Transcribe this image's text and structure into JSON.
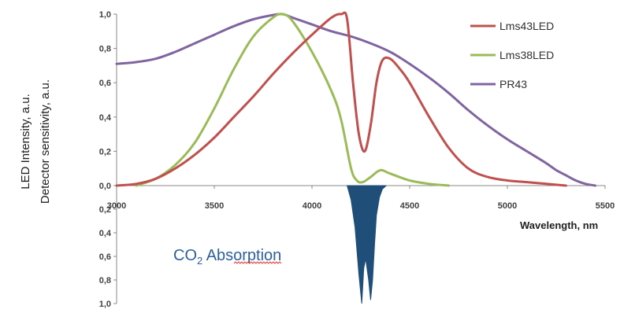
{
  "chart_data": {
    "type": "line",
    "xlabel": "Wavelength, nm",
    "ylabel_lines": [
      "LED Intensity, a.u.",
      "Detector sensitivity, a.u."
    ],
    "xlim": [
      3000,
      5500
    ],
    "x_ticks": [
      "3000",
      "3500",
      "4000",
      "4500",
      "5000",
      "5500"
    ],
    "ylim_top": [
      0,
      1
    ],
    "ylim_bottom": [
      0,
      1
    ],
    "y_ticks_top": [
      "0,0",
      "0,2",
      "0,4",
      "0,6",
      "0,8",
      "1,0"
    ],
    "y_ticks_bottom": [
      "0,2",
      "0,4",
      "0,6",
      "0,8",
      "1,0"
    ],
    "legend_position": "top-right",
    "grid": false,
    "annotation": {
      "main": "CO",
      "sub": "2",
      "rest": " Absorption"
    },
    "series": [
      {
        "name": "Lms43LED",
        "color": "#c0504d",
        "x": [
          3000,
          3100,
          3200,
          3300,
          3400,
          3500,
          3600,
          3700,
          3800,
          3900,
          4000,
          4100,
          4150,
          4180,
          4210,
          4240,
          4270,
          4300,
          4330,
          4360,
          4400,
          4450,
          4500,
          4600,
          4700,
          4800,
          4900,
          5000,
          5100,
          5200,
          5300
        ],
        "y": [
          0.0,
          0.01,
          0.04,
          0.1,
          0.18,
          0.28,
          0.4,
          0.52,
          0.65,
          0.77,
          0.88,
          0.98,
          1.0,
          0.97,
          0.6,
          0.3,
          0.2,
          0.35,
          0.6,
          0.73,
          0.74,
          0.68,
          0.6,
          0.4,
          0.22,
          0.1,
          0.05,
          0.03,
          0.02,
          0.01,
          0.0
        ]
      },
      {
        "name": "Lms38LED",
        "color": "#9bbb59",
        "x": [
          3100,
          3200,
          3300,
          3400,
          3500,
          3600,
          3700,
          3800,
          3850,
          3900,
          4000,
          4100,
          4150,
          4200,
          4230,
          4260,
          4300,
          4350,
          4400,
          4500,
          4600,
          4700
        ],
        "y": [
          0.0,
          0.04,
          0.12,
          0.25,
          0.45,
          0.68,
          0.87,
          0.98,
          1.0,
          0.96,
          0.78,
          0.55,
          0.38,
          0.1,
          0.03,
          0.02,
          0.05,
          0.09,
          0.07,
          0.03,
          0.01,
          0.0
        ]
      },
      {
        "name": "PR43",
        "color": "#8064a2",
        "x": [
          3000,
          3100,
          3200,
          3300,
          3400,
          3500,
          3600,
          3700,
          3800,
          3850,
          3900,
          4000,
          4100,
          4200,
          4300,
          4400,
          4500,
          4600,
          4700,
          4800,
          4900,
          5000,
          5100,
          5200,
          5250,
          5300,
          5350,
          5400,
          5450
        ],
        "y": [
          0.71,
          0.72,
          0.74,
          0.78,
          0.83,
          0.88,
          0.93,
          0.97,
          0.995,
          1.0,
          0.98,
          0.94,
          0.9,
          0.87,
          0.83,
          0.78,
          0.71,
          0.63,
          0.54,
          0.44,
          0.35,
          0.27,
          0.2,
          0.13,
          0.09,
          0.06,
          0.03,
          0.01,
          0.0
        ]
      }
    ],
    "absorption": {
      "name": "CO2 Absorption",
      "color": "#1f4e79",
      "x": [
        4180,
        4200,
        4220,
        4240,
        4255,
        4265,
        4275,
        4290,
        4300,
        4310,
        4320,
        4330,
        4345,
        4360,
        4380
      ],
      "y": [
        0.0,
        0.12,
        0.35,
        0.75,
        1.0,
        0.7,
        0.62,
        0.8,
        0.97,
        0.8,
        0.5,
        0.25,
        0.1,
        0.03,
        0.0
      ]
    }
  }
}
